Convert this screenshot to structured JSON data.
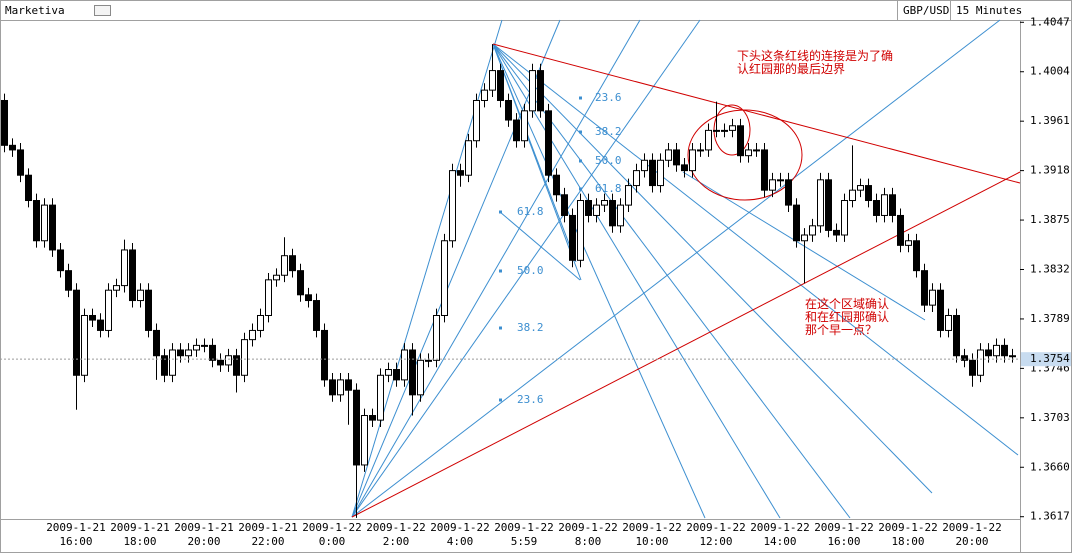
{
  "header": {
    "app": "Marketiva",
    "symbol": "GBP/USD",
    "timeframe": "15 Minutes"
  },
  "chart_data": {
    "type": "candlestick",
    "categories": [
      null,
      null,
      null,
      null,
      null,
      null,
      null,
      null,
      null,
      "2009-1-21\n16:00",
      null,
      null,
      null,
      null,
      null,
      null,
      null,
      "2009-1-21\n18:00",
      null,
      null,
      null,
      null,
      null,
      null,
      null,
      "2009-1-21\n20:00",
      null,
      null,
      null,
      null,
      null,
      null,
      null,
      "2009-1-21\n22:00",
      null,
      null,
      null,
      null,
      null,
      null,
      null,
      "2009-1-22\n0:00",
      null,
      null,
      null,
      null,
      null,
      null,
      null,
      "2009-1-22\n2:00",
      null,
      null,
      null,
      null,
      null,
      null,
      null,
      "2009-1-22\n4:00",
      null,
      null,
      null,
      null,
      null,
      null,
      null,
      "2009-1-22\n5:59",
      null,
      null,
      null,
      null,
      null,
      null,
      null,
      "2009-1-22\n8:00",
      null,
      null,
      null,
      null,
      null,
      null,
      null,
      "2009-1-22\n10:00",
      null,
      null,
      null,
      null,
      null,
      null,
      null,
      "2009-1-22\n12:00",
      null,
      null,
      null,
      null,
      null,
      null,
      null,
      "2009-1-22\n14:00",
      null,
      null,
      null,
      null,
      null,
      null,
      null,
      "2009-1-22\n16:00",
      null,
      null,
      null,
      null,
      null,
      null,
      null,
      "2009-1-22\n18:00",
      null,
      null,
      null,
      null,
      null,
      null,
      null,
      "2009-1-22\n20:00",
      null,
      null,
      null,
      null,
      null
    ],
    "open": [
      1.3979,
      1.394,
      1.3936,
      1.3914,
      1.3892,
      1.3857,
      1.3888,
      1.3849,
      1.3831,
      1.3814,
      1.374,
      1.3792,
      1.3788,
      1.3779,
      1.3814,
      1.3818,
      1.3849,
      1.3805,
      1.3814,
      1.3779,
      1.3757,
      1.374,
      1.3762,
      1.3757,
      1.3762,
      1.3766,
      1.3766,
      1.3753,
      1.3749,
      1.3757,
      1.374,
      1.3771,
      1.3779,
      1.3792,
      1.3823,
      1.3827,
      1.3844,
      1.3831,
      1.381,
      1.3805,
      1.3779,
      1.3736,
      1.3723,
      1.3736,
      1.3727,
      1.3662,
      1.3705,
      1.3701,
      1.374,
      1.3745,
      1.3736,
      1.3762,
      1.3723,
      1.3753,
      1.3753,
      1.3792,
      1.3857,
      1.3918,
      1.3914,
      1.3944,
      1.3979,
      1.3988,
      1.4005,
      1.3979,
      1.3962,
      1.3944,
      1.397,
      1.4005,
      1.397,
      1.3914,
      1.3897,
      1.3879,
      1.384,
      1.3892,
      1.3879,
      1.3888,
      1.3892,
      1.387,
      1.3888,
      1.3905,
      1.3918,
      1.3927,
      1.3905,
      1.3927,
      1.3936,
      1.3923,
      1.3918,
      1.3936,
      1.3936,
      1.3953,
      1.3953,
      1.3953,
      1.3957,
      1.3931,
      1.3936,
      1.3936,
      1.3901,
      1.391,
      1.391,
      1.3888,
      1.3857,
      1.3862,
      1.387,
      1.391,
      1.3866,
      1.3862,
      1.3892,
      1.3901,
      1.3905,
      1.3892,
      1.3879,
      1.3897,
      1.3879,
      1.3853,
      1.3857,
      1.3831,
      1.3801,
      1.3814,
      1.3779,
      1.3792,
      1.3757,
      1.3753,
      1.374,
      1.3762,
      1.3757,
      1.3766,
      1.3757
    ],
    "high": [
      1.3985,
      1.3946,
      1.3942,
      1.392,
      1.3898,
      1.3894,
      1.3894,
      1.3855,
      1.3837,
      1.382,
      1.3798,
      1.3798,
      1.3794,
      1.382,
      1.3824,
      1.3858,
      1.3855,
      1.382,
      1.382,
      1.3785,
      1.3763,
      1.3768,
      1.3768,
      1.3768,
      1.3772,
      1.3772,
      1.3772,
      1.3759,
      1.3763,
      1.3763,
      1.3777,
      1.3785,
      1.3798,
      1.3829,
      1.3833,
      1.386,
      1.385,
      1.3837,
      1.3816,
      1.3811,
      1.3785,
      1.3742,
      1.3742,
      1.3742,
      1.3733,
      1.3711,
      1.3711,
      1.3746,
      1.3751,
      1.3751,
      1.3768,
      1.3768,
      1.3759,
      1.3759,
      1.3798,
      1.3863,
      1.3924,
      1.3924,
      1.395,
      1.3985,
      1.3994,
      1.4028,
      1.4011,
      1.3985,
      1.3968,
      1.3976,
      1.4011,
      1.4011,
      1.3976,
      1.392,
      1.3903,
      1.3885,
      1.3898,
      1.3898,
      1.3894,
      1.3898,
      1.3898,
      1.3894,
      1.3911,
      1.3924,
      1.3933,
      1.3933,
      1.3933,
      1.3942,
      1.3942,
      1.3929,
      1.3942,
      1.3942,
      1.3959,
      1.3978,
      1.3959,
      1.3963,
      1.3963,
      1.3942,
      1.3942,
      1.3942,
      1.3916,
      1.3916,
      1.3916,
      1.3894,
      1.3868,
      1.3876,
      1.3916,
      1.3916,
      1.3872,
      1.3898,
      1.394,
      1.3911,
      1.3911,
      1.3898,
      1.3903,
      1.3903,
      1.3885,
      1.3863,
      1.3863,
      1.3837,
      1.382,
      1.382,
      1.3798,
      1.3798,
      1.3763,
      1.3759,
      1.3768,
      1.3768,
      1.3772,
      1.3772,
      1.3763
    ],
    "low": [
      1.3934,
      1.393,
      1.3908,
      1.3886,
      1.3851,
      1.3851,
      1.3843,
      1.3825,
      1.3808,
      1.371,
      1.3734,
      1.3782,
      1.3773,
      1.3773,
      1.3808,
      1.3812,
      1.3799,
      1.3799,
      1.3773,
      1.3736,
      1.3734,
      1.3734,
      1.3751,
      1.3751,
      1.3756,
      1.376,
      1.3747,
      1.3743,
      1.3743,
      1.3725,
      1.3734,
      1.3765,
      1.3773,
      1.3786,
      1.3817,
      1.3821,
      1.3825,
      1.3804,
      1.3799,
      1.3773,
      1.373,
      1.3717,
      1.3717,
      1.3697,
      1.3616,
      1.3656,
      1.3695,
      1.3695,
      1.3734,
      1.373,
      1.373,
      1.3705,
      1.3717,
      1.3747,
      1.3747,
      1.3786,
      1.3851,
      1.3904,
      1.3908,
      1.3938,
      1.3973,
      1.3982,
      1.3973,
      1.3956,
      1.3938,
      1.3938,
      1.3964,
      1.3964,
      1.3908,
      1.3891,
      1.3873,
      1.3834,
      1.3834,
      1.3873,
      1.3873,
      1.3882,
      1.3864,
      1.3864,
      1.3882,
      1.3899,
      1.3912,
      1.3899,
      1.3899,
      1.3921,
      1.3917,
      1.3912,
      1.3912,
      1.393,
      1.393,
      1.3947,
      1.3947,
      1.3947,
      1.3925,
      1.3925,
      1.393,
      1.3895,
      1.3895,
      1.3904,
      1.3882,
      1.3851,
      1.382,
      1.3856,
      1.3864,
      1.386,
      1.3856,
      1.3856,
      1.3886,
      1.3895,
      1.3886,
      1.3873,
      1.3873,
      1.3873,
      1.3847,
      1.3847,
      1.3825,
      1.3795,
      1.3795,
      1.3773,
      1.3773,
      1.3751,
      1.3747,
      1.373,
      1.3734,
      1.3751,
      1.3751,
      1.3751,
      1.3751
    ],
    "close": [
      1.394,
      1.3936,
      1.3914,
      1.3892,
      1.3857,
      1.3888,
      1.3849,
      1.3831,
      1.3814,
      1.374,
      1.3792,
      1.3788,
      1.3779,
      1.3814,
      1.3818,
      1.3849,
      1.3805,
      1.3814,
      1.3779,
      1.3757,
      1.374,
      1.3762,
      1.3757,
      1.3762,
      1.3766,
      1.3766,
      1.3753,
      1.3749,
      1.3757,
      1.374,
      1.3771,
      1.3779,
      1.3792,
      1.3823,
      1.3827,
      1.3844,
      1.3831,
      1.381,
      1.3805,
      1.3779,
      1.3736,
      1.3723,
      1.3736,
      1.3727,
      1.3662,
      1.3705,
      1.3701,
      1.374,
      1.3745,
      1.3736,
      1.3762,
      1.3723,
      1.3753,
      1.3753,
      1.3792,
      1.3857,
      1.3918,
      1.3914,
      1.3944,
      1.3979,
      1.3988,
      1.4005,
      1.3979,
      1.3962,
      1.3944,
      1.397,
      1.4005,
      1.397,
      1.3914,
      1.3897,
      1.3879,
      1.384,
      1.3892,
      1.3879,
      1.3888,
      1.3892,
      1.387,
      1.3888,
      1.3905,
      1.3918,
      1.3927,
      1.3905,
      1.3927,
      1.3936,
      1.3923,
      1.3918,
      1.3936,
      1.3936,
      1.3953,
      1.3953,
      1.3953,
      1.3957,
      1.3931,
      1.3936,
      1.3936,
      1.3901,
      1.391,
      1.391,
      1.3888,
      1.3857,
      1.3862,
      1.387,
      1.391,
      1.3866,
      1.3862,
      1.3892,
      1.3901,
      1.3905,
      1.3892,
      1.3879,
      1.3897,
      1.3879,
      1.3853,
      1.3857,
      1.3831,
      1.3801,
      1.3814,
      1.3779,
      1.3792,
      1.3757,
      1.3753,
      1.374,
      1.3762,
      1.3757,
      1.3766,
      1.3757,
      1.3757
    ],
    "ylim": [
      1.3615,
      1.4049
    ],
    "yticks": [
      1.3617,
      {
        "value": 1.366,
        "label": "1.3660"
      },
      1.3703,
      1.3746,
      1.3789,
      1.3832,
      1.3875,
      1.3918,
      1.3961,
      1.4004,
      1.4047
    ],
    "last_price": 1.3754,
    "up_color": "#ffffff",
    "down_color": "#000000",
    "grid": false
  },
  "annotations": {
    "note_1": "下头这条红线的连接是为了确\n认红园那的最后边界",
    "note_2": "在这个区域确认\n和在红园那确认\n那个早一点？",
    "fib_top": [
      "23.6",
      "38.2",
      "50.0",
      "61.8"
    ],
    "fib_bottom": [
      "61.8",
      "50.0",
      "38.2",
      "23.6"
    ]
  }
}
